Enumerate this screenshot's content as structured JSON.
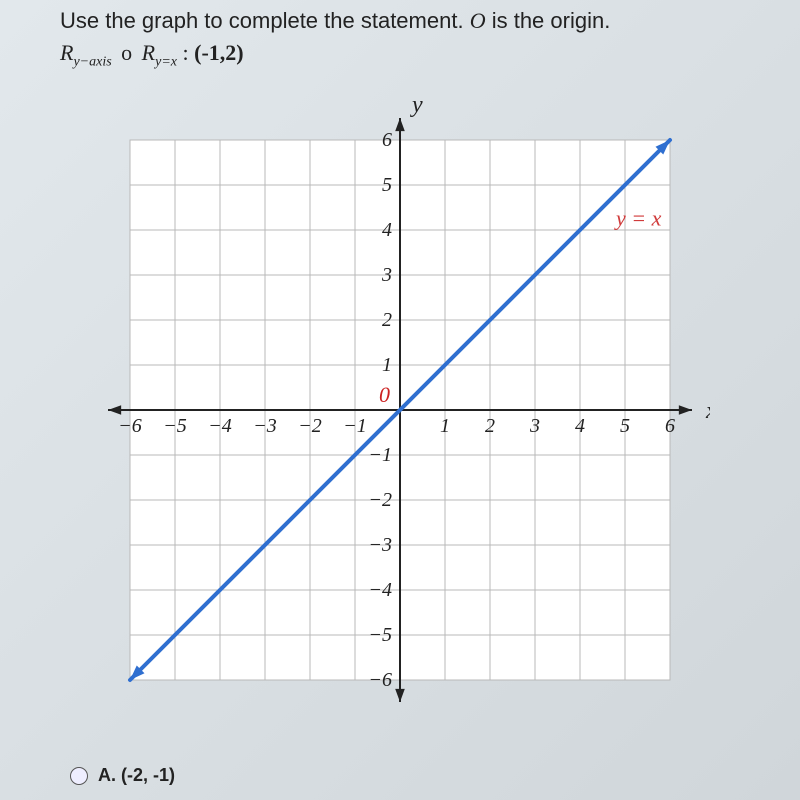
{
  "question": {
    "prompt_line1": "Use the graph to complete the statement. ",
    "origin_var": "O",
    "prompt_line1b": " is the origin.",
    "formula_r1": "R",
    "formula_sub1": "y−axis",
    "formula_op": "o",
    "formula_r2": "R",
    "formula_sub2": "y=x",
    "formula_colon": " : ",
    "formula_point": "(-1,2)"
  },
  "answer": {
    "label": "A.",
    "value": "(-2, -1)"
  },
  "chart": {
    "type": "line",
    "background_color": "#ffffff",
    "grid_color": "#b9b9b9",
    "axis_color": "#222222",
    "axis_label_color": "#222222",
    "axis_label_fontsize": 20,
    "axis_title_fontsize": 24,
    "xlim": [
      -6,
      6
    ],
    "ylim": [
      -6,
      6
    ],
    "tick_step": 1,
    "x_ticks": [
      -6,
      -5,
      -4,
      -3,
      -2,
      -1,
      1,
      2,
      3,
      4,
      5,
      6
    ],
    "y_ticks": [
      -6,
      -5,
      -4,
      -3,
      -2,
      -1,
      1,
      2,
      3,
      4,
      5,
      6
    ],
    "origin_label": "0",
    "origin_label_color": "#c22",
    "x_axis_title": "x",
    "y_axis_title": "y",
    "line": {
      "label": "y = x",
      "label_color": "#d03a3a",
      "label_pos": [
        4.8,
        4.1
      ],
      "color": "#2f6fd0",
      "width": 4,
      "points": [
        [
          -6,
          -6
        ],
        [
          6,
          6
        ]
      ],
      "arrow_start": true,
      "arrow_end": true
    },
    "axis_arrows": true,
    "plot_box_padding_units": 0.2
  }
}
